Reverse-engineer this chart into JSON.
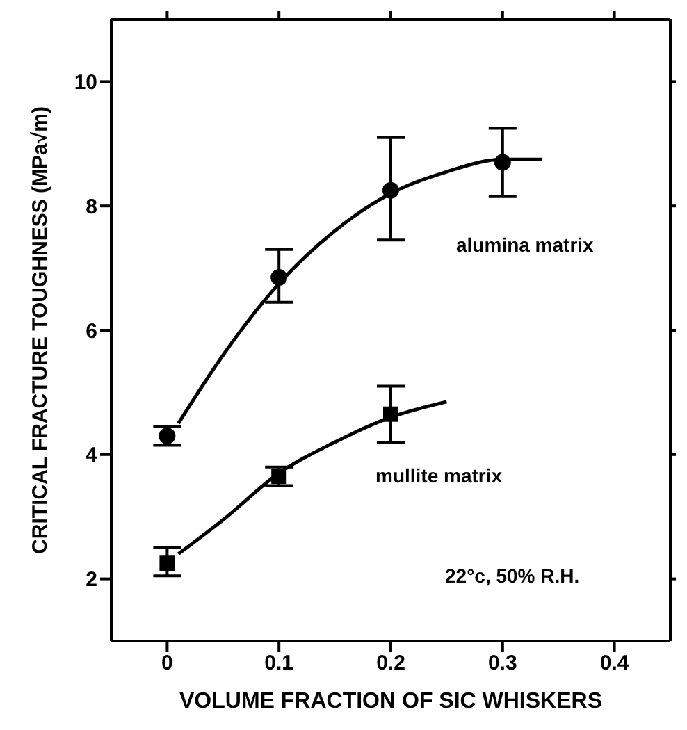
{
  "chart_data": {
    "type": "scatter",
    "xlabel": "VOLUME FRACTION OF SIC WHISKERS",
    "ylabel": "CRITICAL FRACTURE TOUGHNESS (MPa√m)",
    "xlim": [
      -0.05,
      0.45
    ],
    "xticks": [
      0,
      0.1,
      0.2,
      0.3,
      0.4
    ],
    "ylim": [
      1,
      11
    ],
    "yticks": [
      2,
      4,
      6,
      8,
      10
    ],
    "legend": false,
    "series": [
      {
        "marker": "circle",
        "color": "#000000",
        "x": [
          0,
          0.1,
          0.2,
          0.3
        ],
        "values": [
          4.3,
          6.85,
          8.25,
          8.7
        ],
        "errors": [
          [
            4.15,
            4.45
          ],
          [
            6.45,
            7.3
          ],
          [
            7.45,
            9.1
          ],
          [
            8.15,
            9.25
          ]
        ]
      },
      {
        "marker": "square",
        "color": "#000000",
        "x": [
          0,
          0.1,
          0.2
        ],
        "values": [
          2.25,
          3.65,
          4.65
        ],
        "errors": [
          [
            2.05,
            2.5
          ],
          [
            3.5,
            3.8
          ],
          [
            4.2,
            5.1
          ]
        ]
      },
      {
        "type": "line",
        "line_style": "solid",
        "color": "#000000",
        "x": [
          0.01,
          0.05,
          0.1,
          0.15,
          0.2,
          0.25,
          0.3,
          0.335
        ],
        "values": [
          4.5,
          5.6,
          6.75,
          7.6,
          8.2,
          8.55,
          8.75,
          8.75
        ]
      },
      {
        "type": "line",
        "line_style": "solid",
        "color": "#000000",
        "x": [
          0.01,
          0.05,
          0.1,
          0.15,
          0.2,
          0.25
        ],
        "values": [
          2.4,
          2.95,
          3.7,
          4.2,
          4.6,
          4.85
        ]
      }
    ],
    "annotations": [
      "alumina matrix",
      "mullite matrix",
      "22°c, 50% R.H."
    ]
  }
}
